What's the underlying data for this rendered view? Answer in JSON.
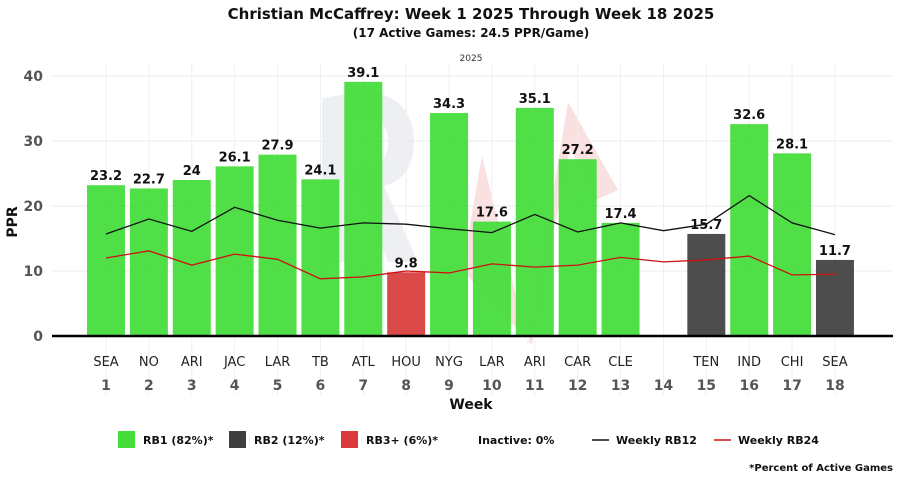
{
  "chart_data": {
    "type": "bar",
    "title": "Christian McCaffrey: Week 1 2025 Through Week 18 2025",
    "subtitle": "(17 Active Games: 24.5 PPR/Game)",
    "season_label": "2025",
    "ylabel": "PPR",
    "xlabel": "Week",
    "ylim": [
      0,
      40
    ],
    "yticks": [
      0,
      10,
      20,
      30,
      40
    ],
    "categories": [
      "1",
      "2",
      "3",
      "4",
      "5",
      "6",
      "7",
      "8",
      "9",
      "10",
      "11",
      "12",
      "13",
      "14",
      "15",
      "16",
      "17",
      "18"
    ],
    "opponents": [
      "SEA",
      "NO",
      "ARI",
      "JAC",
      "LAR",
      "TB",
      "ATL",
      "HOU",
      "NYG",
      "LAR",
      "ARI",
      "CAR",
      "CLE",
      "",
      "TEN",
      "IND",
      "CHI",
      "SEA"
    ],
    "values": [
      23.2,
      22.7,
      24,
      26.1,
      27.9,
      24.1,
      39.1,
      9.8,
      34.3,
      17.6,
      35.1,
      27.2,
      17.4,
      null,
      15.7,
      32.6,
      28.1,
      11.7
    ],
    "value_labels": [
      "23.2",
      "22.7",
      "24",
      "26.1",
      "27.9",
      "24.1",
      "39.1",
      "9.8",
      "34.3",
      "17.6",
      "35.1",
      "27.2",
      "17.4",
      "",
      "15.7",
      "32.6",
      "28.1",
      "11.7"
    ],
    "tiers": [
      "RB1",
      "RB1",
      "RB1",
      "RB1",
      "RB1",
      "RB1",
      "RB1",
      "RB3+",
      "RB1",
      "RB1",
      "RB1",
      "RB1",
      "RB1",
      "",
      "RB2",
      "RB1",
      "RB1",
      "RB2"
    ],
    "lines": [
      {
        "name": "Weekly RB12",
        "color": "#111111",
        "values": [
          15.7,
          18.0,
          16.1,
          19.8,
          17.8,
          16.6,
          17.4,
          17.2,
          16.5,
          15.9,
          18.7,
          16.0,
          17.4,
          16.2,
          17.2,
          21.6,
          17.4,
          15.6
        ]
      },
      {
        "name": "Weekly RB24",
        "color": "#cc1111",
        "values": [
          12.0,
          13.1,
          10.9,
          12.6,
          11.8,
          8.8,
          9.1,
          10.0,
          9.7,
          11.1,
          10.6,
          10.9,
          12.1,
          11.4,
          11.7,
          12.3,
          9.4,
          9.5
        ]
      }
    ],
    "colors": {
      "RB1": "#44dd3a",
      "RB2": "#3f3f3f",
      "RB3+": "#d93b3b"
    },
    "legend": [
      {
        "type": "box",
        "color": "#44dd3a",
        "label": "RB1 (82%)*"
      },
      {
        "type": "box",
        "color": "#3f3f3f",
        "label": "RB2 (12%)*"
      },
      {
        "type": "box",
        "color": "#d93b3b",
        "label": "RB3+ (6%)*"
      },
      {
        "type": "text",
        "color": "",
        "label": "Inactive: 0%"
      },
      {
        "type": "line",
        "color": "#111111",
        "label": "Weekly RB12"
      },
      {
        "type": "line",
        "color": "#cc1111",
        "label": "Weekly RB24"
      }
    ],
    "legend_position": "bottom",
    "footnote": "*Percent of Active Games",
    "grid": true
  }
}
